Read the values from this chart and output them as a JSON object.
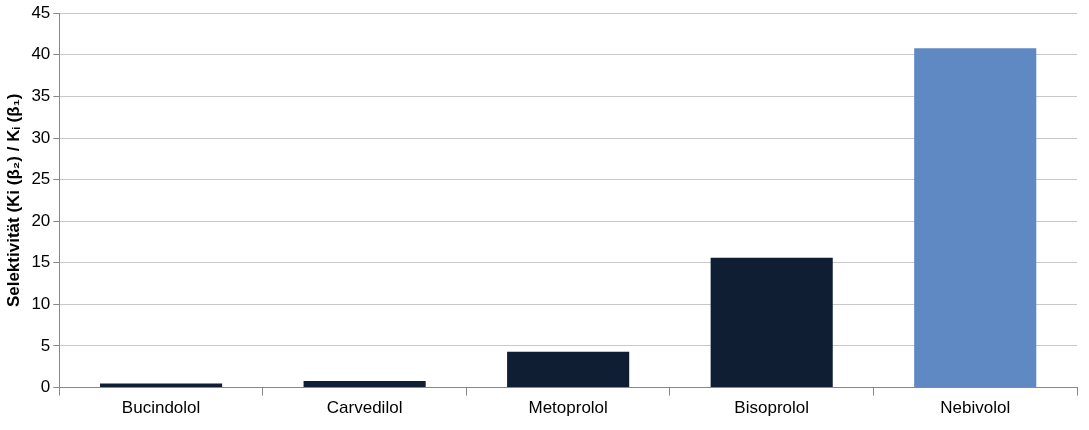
{
  "chart_data": {
    "type": "bar",
    "ylabel": "Selektivität (Ki (β₂) / Kᵢ (β₁)",
    "categories": [
      "Bucindolol",
      "Carvedilol",
      "Metoprolol",
      "Bisoprolol",
      "Nebivolol"
    ],
    "values": [
      0.5,
      0.8,
      4.3,
      15.6,
      40.8
    ],
    "colors": [
      "#0f1e33",
      "#0f1e33",
      "#0f1e33",
      "#0f1e33",
      "#5f89c3"
    ],
    "ylim": [
      0,
      45
    ],
    "yticks": [
      0,
      5,
      10,
      15,
      20,
      25,
      30,
      35,
      40,
      45
    ],
    "grid": "y"
  }
}
